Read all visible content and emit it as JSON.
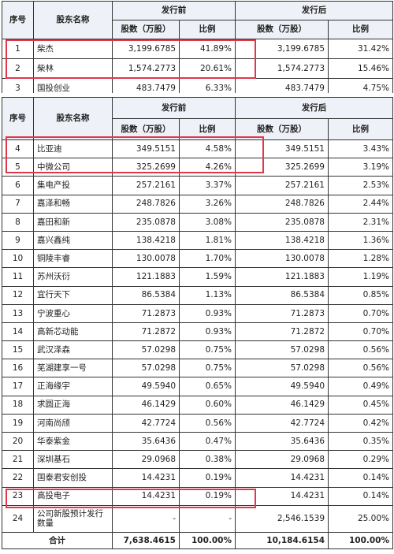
{
  "headers": {
    "seq": "序号",
    "name": "股东名称",
    "pre": "发行前",
    "post": "发行后",
    "shares": "股数（万股）",
    "ratio": "比例"
  },
  "table1": [
    {
      "seq": "1",
      "name": "柴杰",
      "pre_shares": "3,199.6785",
      "pre_ratio": "41.89%",
      "post_shares": "3,199.6785",
      "post_ratio": "31.42%"
    },
    {
      "seq": "2",
      "name": "柴林",
      "pre_shares": "1,574.2773",
      "pre_ratio": "20.61%",
      "post_shares": "1,574.2773",
      "post_ratio": "15.46%"
    },
    {
      "seq": "3",
      "name": "国投创业",
      "pre_shares": "483.7479",
      "pre_ratio": "6.33%",
      "post_shares": "483.7479",
      "post_ratio": "4.75%"
    }
  ],
  "table2": [
    {
      "seq": "4",
      "name": "比亚迪",
      "pre_shares": "349.5151",
      "pre_ratio": "4.58%",
      "post_shares": "349.5151",
      "post_ratio": "3.43%"
    },
    {
      "seq": "5",
      "name": "中微公司",
      "pre_shares": "325.2699",
      "pre_ratio": "4.26%",
      "post_shares": "325.2699",
      "post_ratio": "3.19%"
    },
    {
      "seq": "6",
      "name": "集电产投",
      "pre_shares": "257.2161",
      "pre_ratio": "3.37%",
      "post_shares": "257.2161",
      "post_ratio": "2.53%"
    },
    {
      "seq": "7",
      "name": "嘉泽和畅",
      "pre_shares": "248.7826",
      "pre_ratio": "3.26%",
      "post_shares": "248.7826",
      "post_ratio": "2.44%"
    },
    {
      "seq": "8",
      "name": "嘉田和新",
      "pre_shares": "235.0878",
      "pre_ratio": "3.08%",
      "post_shares": "235.0878",
      "post_ratio": "2.31%"
    },
    {
      "seq": "9",
      "name": "嘉兴鑫纯",
      "pre_shares": "138.4218",
      "pre_ratio": "1.81%",
      "post_shares": "138.4218",
      "post_ratio": "1.36%"
    },
    {
      "seq": "10",
      "name": "铜陵丰睿",
      "pre_shares": "130.0078",
      "pre_ratio": "1.70%",
      "post_shares": "130.0078",
      "post_ratio": "1.28%"
    },
    {
      "seq": "11",
      "name": "苏州沃衍",
      "pre_shares": "121.1883",
      "pre_ratio": "1.59%",
      "post_shares": "121.1883",
      "post_ratio": "1.19%"
    },
    {
      "seq": "12",
      "name": "宜行天下",
      "pre_shares": "86.5384",
      "pre_ratio": "1.13%",
      "post_shares": "86.5384",
      "post_ratio": "0.85%"
    },
    {
      "seq": "13",
      "name": "宁波重心",
      "pre_shares": "71.2873",
      "pre_ratio": "0.93%",
      "post_shares": "71.2873",
      "post_ratio": "0.70%"
    },
    {
      "seq": "14",
      "name": "高新芯动能",
      "pre_shares": "71.2872",
      "pre_ratio": "0.93%",
      "post_shares": "71.2872",
      "post_ratio": "0.70%"
    },
    {
      "seq": "15",
      "name": "武汉泽森",
      "pre_shares": "57.0298",
      "pre_ratio": "0.75%",
      "post_shares": "57.0298",
      "post_ratio": "0.56%"
    },
    {
      "seq": "16",
      "name": "芜湖建享一号",
      "pre_shares": "57.0298",
      "pre_ratio": "0.75%",
      "post_shares": "57.0298",
      "post_ratio": "0.56%"
    },
    {
      "seq": "17",
      "name": "正海缘宇",
      "pre_shares": "49.5940",
      "pre_ratio": "0.65%",
      "post_shares": "49.5940",
      "post_ratio": "0.49%"
    },
    {
      "seq": "18",
      "name": "求圆正海",
      "pre_shares": "46.1429",
      "pre_ratio": "0.60%",
      "post_shares": "46.1429",
      "post_ratio": "0.45%"
    },
    {
      "seq": "19",
      "name": "河南尚颀",
      "pre_shares": "42.7724",
      "pre_ratio": "0.56%",
      "post_shares": "42.7724",
      "post_ratio": "0.42%"
    },
    {
      "seq": "20",
      "name": "华泰紫金",
      "pre_shares": "35.6436",
      "pre_ratio": "0.47%",
      "post_shares": "35.6436",
      "post_ratio": "0.35%"
    },
    {
      "seq": "21",
      "name": "深圳基石",
      "pre_shares": "29.0968",
      "pre_ratio": "0.38%",
      "post_shares": "29.0968",
      "post_ratio": "0.29%"
    },
    {
      "seq": "22",
      "name": "国泰君安创投",
      "pre_shares": "14.4231",
      "pre_ratio": "0.19%",
      "post_shares": "14.4231",
      "post_ratio": "0.14%"
    },
    {
      "seq": "23",
      "name": "高投电子",
      "pre_shares": "14.4231",
      "pre_ratio": "0.19%",
      "post_shares": "14.4231",
      "post_ratio": "0.14%"
    },
    {
      "seq": "24",
      "name": "公司新股预计发行数量",
      "pre_shares": "-",
      "pre_ratio": "-",
      "post_shares": "2,546.1539",
      "post_ratio": "25.00%"
    }
  ],
  "total": {
    "label": "合计",
    "pre_shares": "7,638.4615",
    "pre_ratio": "100.00%",
    "post_shares": "10,184.6154",
    "post_ratio": "100.00%"
  },
  "highlight_color": "#e0384a",
  "header_bg": "#eef1f7"
}
